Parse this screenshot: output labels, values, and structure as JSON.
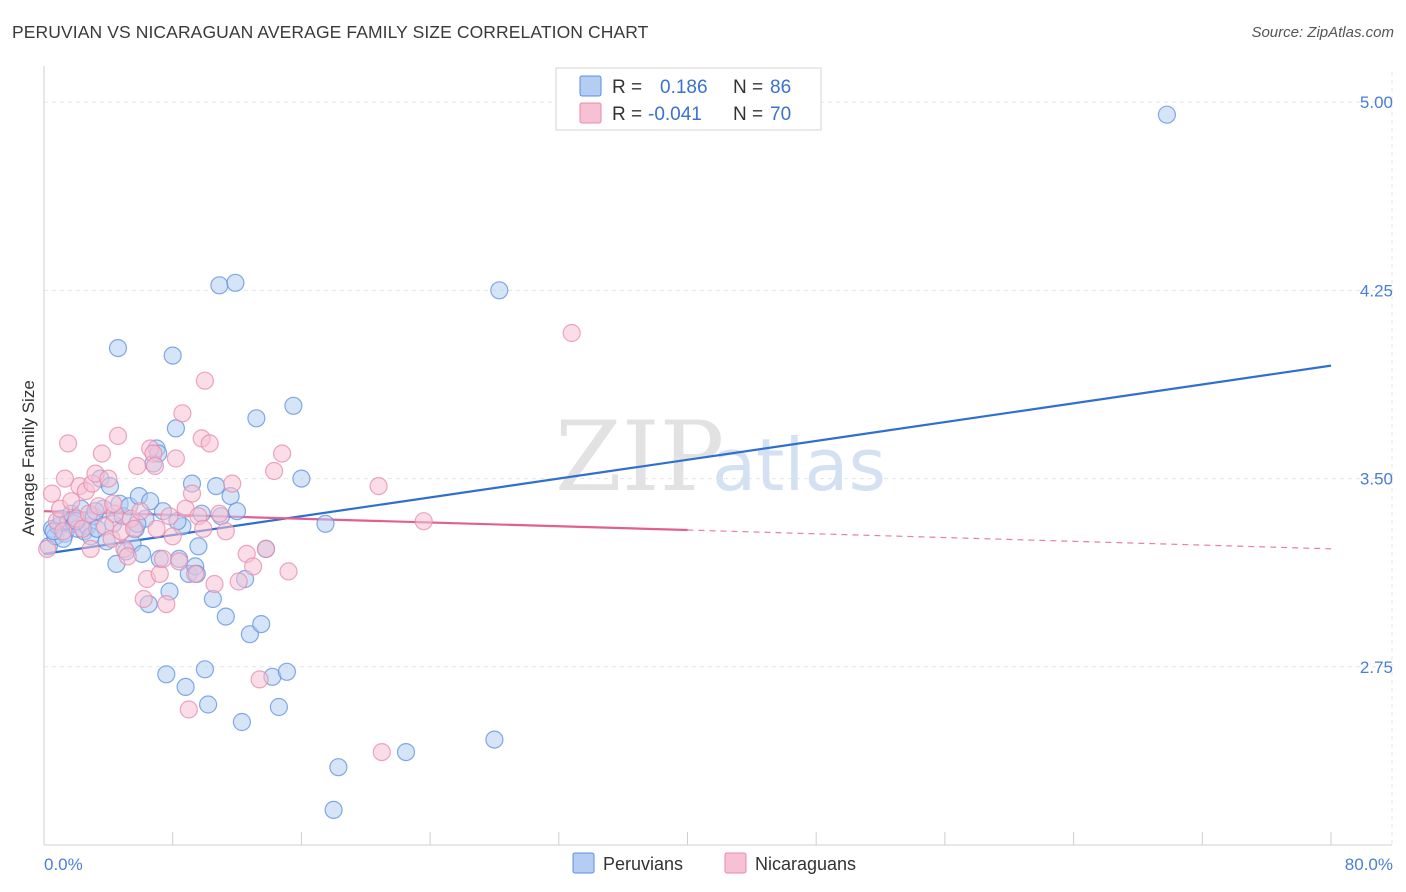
{
  "title": "PERUVIAN VS NICARAGUAN AVERAGE FAMILY SIZE CORRELATION CHART",
  "source": "Source: ZipAtlas.com",
  "watermark": {
    "zip": "ZIP",
    "atlas": "atlas"
  },
  "colors": {
    "peruvian": "#5b8fe0",
    "peruvian_fill": "#b5cdf2",
    "peruvian_line": "#2f6fd0",
    "nicaraguan": "#e889a8",
    "nicaraguan_fill": "#f6c1d3",
    "nicaraguan_line": "#e0608f",
    "grid": "#e5e5e5",
    "tick_label": "#4a7fd4"
  },
  "legend": {
    "rows": [
      {
        "r_label": "R =",
        "r_value": "0.186",
        "n_label": "N =",
        "n_value": "86"
      },
      {
        "r_label": "R =",
        "r_value": "-0.041",
        "n_label": "N =",
        "n_value": "70"
      }
    ]
  },
  "chart_data": {
    "type": "scatter",
    "title": "PERUVIAN VS NICARAGUAN AVERAGE FAMILY SIZE CORRELATION CHART",
    "xlabel": "",
    "ylabel": "Average Family Size",
    "xlim": [
      0,
      80
    ],
    "ylim": [
      2.04,
      5.12
    ],
    "x_tick_labels": [
      "0.0%",
      "80.0%"
    ],
    "y_ticks": [
      2.75,
      3.5,
      4.25,
      5.0
    ],
    "y_tick_labels": [
      "2.75",
      "3.50",
      "4.25",
      "5.00"
    ],
    "grid": true,
    "legend_position": "top-center",
    "series": [
      {
        "name": "Peruvians",
        "r": 0.186,
        "n": 86,
        "trend": {
          "x": [
            0,
            80
          ],
          "y": [
            3.2,
            3.95
          ],
          "solid_to": 80
        },
        "points": [
          [
            0.3,
            3.23
          ],
          [
            0.5,
            3.3
          ],
          [
            0.7,
            3.27
          ],
          [
            0.9,
            3.31
          ],
          [
            1.1,
            3.34
          ],
          [
            1.3,
            3.28
          ],
          [
            1.5,
            3.33
          ],
          [
            1.7,
            3.36
          ],
          [
            1.9,
            3.32
          ],
          [
            2.1,
            3.3
          ],
          [
            2.3,
            3.38
          ],
          [
            2.5,
            3.29
          ],
          [
            2.7,
            3.31
          ],
          [
            2.9,
            3.27
          ],
          [
            3.1,
            3.35
          ],
          [
            3.3,
            3.3
          ],
          [
            3.5,
            3.5
          ],
          [
            3.7,
            3.38
          ],
          [
            3.9,
            3.25
          ],
          [
            4.1,
            3.47
          ],
          [
            4.3,
            3.32
          ],
          [
            4.5,
            3.16
          ],
          [
            4.7,
            3.4
          ],
          [
            4.9,
            3.35
          ],
          [
            5.1,
            3.21
          ],
          [
            5.3,
            3.39
          ],
          [
            5.5,
            3.24
          ],
          [
            5.7,
            3.3
          ],
          [
            5.9,
            3.43
          ],
          [
            6.1,
            3.2
          ],
          [
            6.3,
            3.34
          ],
          [
            6.5,
            3.0
          ],
          [
            4.6,
            4.02
          ],
          [
            6.8,
            3.56
          ],
          [
            7.0,
            3.62
          ],
          [
            7.2,
            3.18
          ],
          [
            7.4,
            3.37
          ],
          [
            7.6,
            2.72
          ],
          [
            7.8,
            3.05
          ],
          [
            8.0,
            3.99
          ],
          [
            8.2,
            3.7
          ],
          [
            8.4,
            3.18
          ],
          [
            8.6,
            3.31
          ],
          [
            8.8,
            2.67
          ],
          [
            9.0,
            3.12
          ],
          [
            9.2,
            3.48
          ],
          [
            9.4,
            3.15
          ],
          [
            9.6,
            3.23
          ],
          [
            9.8,
            3.36
          ],
          [
            10.0,
            2.74
          ],
          [
            10.2,
            2.6
          ],
          [
            10.5,
            3.02
          ],
          [
            10.7,
            3.47
          ],
          [
            11.0,
            3.35
          ],
          [
            11.3,
            2.95
          ],
          [
            11.6,
            3.43
          ],
          [
            12.0,
            3.37
          ],
          [
            12.3,
            2.53
          ],
          [
            12.8,
            2.88
          ],
          [
            13.2,
            3.74
          ],
          [
            13.5,
            2.92
          ],
          [
            13.8,
            3.22
          ],
          [
            14.2,
            2.71
          ],
          [
            14.6,
            2.59
          ],
          [
            15.1,
            2.73
          ],
          [
            15.5,
            3.79
          ],
          [
            16.0,
            3.5
          ],
          [
            17.5,
            3.32
          ],
          [
            18.0,
            2.18
          ],
          [
            18.3,
            2.35
          ],
          [
            22.5,
            2.41
          ],
          [
            28.0,
            2.46
          ],
          [
            28.3,
            4.25
          ],
          [
            69.8,
            4.95
          ],
          [
            9.5,
            3.12
          ],
          [
            10.9,
            4.27
          ],
          [
            11.9,
            4.28
          ],
          [
            3.2,
            3.37
          ],
          [
            2.0,
            3.33
          ],
          [
            1.2,
            3.26
          ],
          [
            0.6,
            3.29
          ],
          [
            5.8,
            3.32
          ],
          [
            6.6,
            3.41
          ],
          [
            7.1,
            3.6
          ],
          [
            8.3,
            3.33
          ],
          [
            12.5,
            3.1
          ]
        ]
      },
      {
        "name": "Nicaraguans",
        "r": -0.041,
        "n": 70,
        "trend": {
          "x": [
            0,
            80
          ],
          "y": [
            3.37,
            3.22
          ],
          "solid_to": 40
        },
        "points": [
          [
            0.2,
            3.22
          ],
          [
            0.5,
            3.44
          ],
          [
            0.8,
            3.33
          ],
          [
            1.0,
            3.38
          ],
          [
            1.2,
            3.29
          ],
          [
            1.5,
            3.64
          ],
          [
            1.7,
            3.41
          ],
          [
            2.0,
            3.34
          ],
          [
            2.2,
            3.47
          ],
          [
            2.4,
            3.3
          ],
          [
            2.6,
            3.45
          ],
          [
            2.8,
            3.36
          ],
          [
            3.0,
            3.48
          ],
          [
            3.2,
            3.52
          ],
          [
            3.4,
            3.39
          ],
          [
            3.6,
            3.6
          ],
          [
            3.8,
            3.31
          ],
          [
            4.0,
            3.5
          ],
          [
            4.2,
            3.26
          ],
          [
            4.4,
            3.36
          ],
          [
            4.6,
            3.67
          ],
          [
            4.8,
            3.29
          ],
          [
            5.0,
            3.22
          ],
          [
            5.2,
            3.19
          ],
          [
            5.4,
            3.34
          ],
          [
            5.6,
            3.3
          ],
          [
            5.8,
            3.55
          ],
          [
            6.0,
            3.37
          ],
          [
            6.2,
            3.02
          ],
          [
            6.4,
            3.1
          ],
          [
            6.6,
            3.62
          ],
          [
            6.8,
            3.6
          ],
          [
            7.0,
            3.3
          ],
          [
            7.2,
            3.12
          ],
          [
            7.4,
            3.18
          ],
          [
            7.6,
            3.0
          ],
          [
            7.8,
            3.35
          ],
          [
            8.0,
            3.27
          ],
          [
            8.2,
            3.58
          ],
          [
            8.4,
            3.17
          ],
          [
            8.6,
            3.76
          ],
          [
            8.8,
            3.38
          ],
          [
            9.0,
            2.58
          ],
          [
            9.2,
            3.44
          ],
          [
            9.4,
            3.12
          ],
          [
            9.6,
            3.35
          ],
          [
            9.8,
            3.66
          ],
          [
            10.0,
            3.89
          ],
          [
            10.3,
            3.64
          ],
          [
            10.6,
            3.08
          ],
          [
            10.9,
            3.36
          ],
          [
            11.3,
            3.29
          ],
          [
            11.7,
            3.48
          ],
          [
            12.1,
            3.09
          ],
          [
            12.6,
            3.2
          ],
          [
            13.0,
            3.15
          ],
          [
            13.4,
            2.7
          ],
          [
            13.8,
            3.22
          ],
          [
            14.3,
            3.53
          ],
          [
            14.8,
            3.6
          ],
          [
            15.2,
            3.13
          ],
          [
            20.8,
            3.47
          ],
          [
            21.0,
            2.41
          ],
          [
            23.6,
            3.33
          ],
          [
            32.8,
            4.08
          ],
          [
            1.3,
            3.5
          ],
          [
            2.9,
            3.22
          ],
          [
            4.3,
            3.4
          ],
          [
            6.9,
            3.55
          ],
          [
            9.9,
            3.3
          ]
        ]
      }
    ]
  },
  "bottom_legend": [
    {
      "label": "Peruvians"
    },
    {
      "label": "Nicaraguans"
    }
  ]
}
